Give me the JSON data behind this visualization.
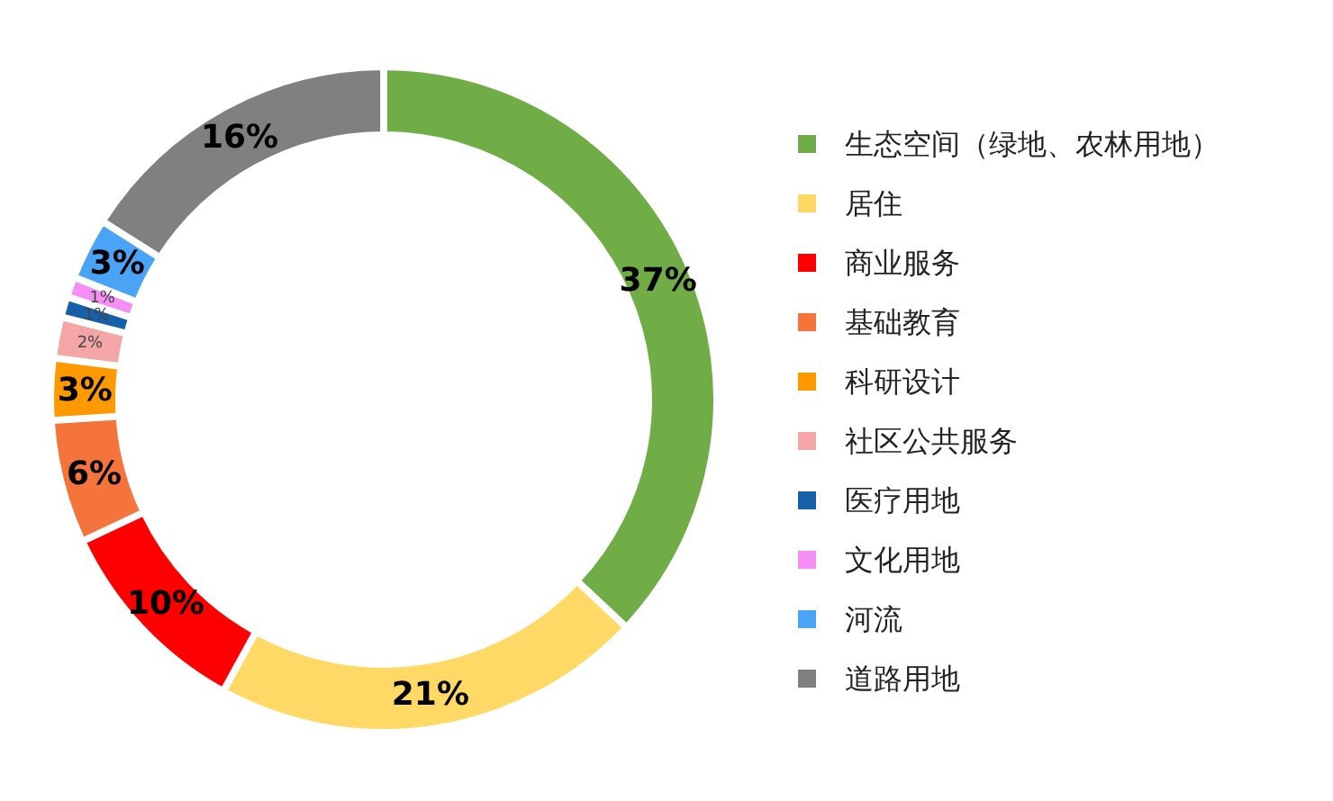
{
  "chart_data": {
    "type": "donut",
    "categories": [
      "生态空间（绿地、农林用地）",
      "居住",
      "商业服务",
      "基础教育",
      "科研设计",
      "社区公共服务",
      "医疗用地",
      "文化用地",
      "河流",
      "道路用地"
    ],
    "values": [
      37,
      21,
      10,
      6,
      3,
      2,
      1,
      1,
      3,
      16
    ],
    "colors": [
      "#70ad47",
      "#ffd966",
      "#ff0000",
      "#f4743b",
      "#ff9900",
      "#f4a6a6",
      "#1560a8",
      "#f58ef5",
      "#4aa3f5",
      "#808080"
    ],
    "value_labels": [
      "37%",
      "21%",
      "10%",
      "6%",
      "3%",
      "2%",
      "1%",
      "1%",
      "3%",
      "16%"
    ],
    "legend": "right"
  }
}
